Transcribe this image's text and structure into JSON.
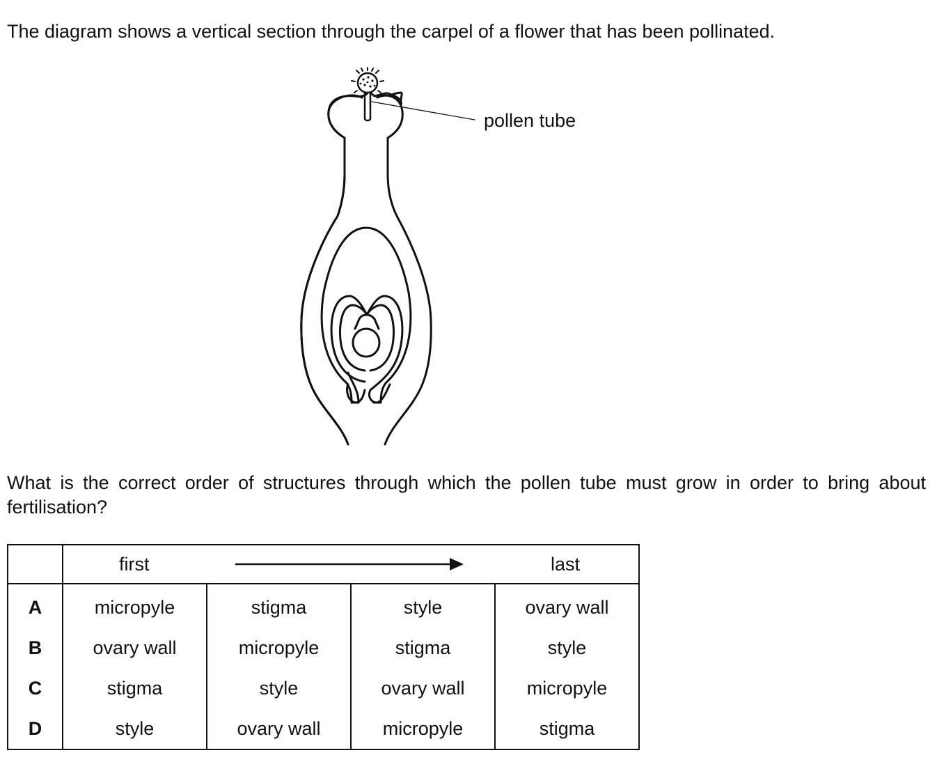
{
  "intro_text": "The diagram shows a vertical section through the carpel of a flower that has been pollinated.",
  "diagram": {
    "label_pollen_tube": "pollen tube"
  },
  "question_text": "What is the correct order of structures through which the pollen tube must grow in order to bring about fertilisation?",
  "table": {
    "header_first": "first",
    "header_last": "last",
    "rows": [
      {
        "letter": "A",
        "cells": [
          "micropyle",
          "stigma",
          "style",
          "ovary wall"
        ]
      },
      {
        "letter": "B",
        "cells": [
          "ovary wall",
          "micropyle",
          "stigma",
          "style"
        ]
      },
      {
        "letter": "C",
        "cells": [
          "stigma",
          "style",
          "ovary wall",
          "micropyle"
        ]
      },
      {
        "letter": "D",
        "cells": [
          "style",
          "ovary wall",
          "micropyle",
          "stigma"
        ]
      }
    ]
  }
}
